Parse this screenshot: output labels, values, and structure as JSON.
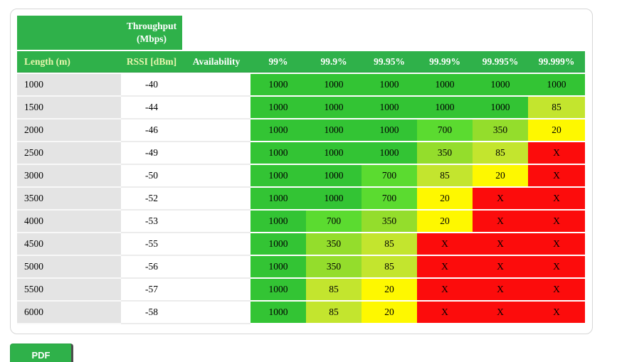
{
  "table": {
    "corner_header": "Throughput\n(Mbps)",
    "columns": [
      "Length (m)",
      "RSSI [dBm]",
      "Availability",
      "99%",
      "99.9%",
      "99.95%",
      "99.99%",
      "99.995%",
      "99.999%"
    ],
    "rows": [
      {
        "length": "1000",
        "rssi": "-40",
        "availability": "",
        "values": [
          "1000",
          "1000",
          "1000",
          "1000",
          "1000",
          "1000"
        ]
      },
      {
        "length": "1500",
        "rssi": "-44",
        "availability": "",
        "values": [
          "1000",
          "1000",
          "1000",
          "1000",
          "1000",
          "85"
        ]
      },
      {
        "length": "2000",
        "rssi": "-46",
        "availability": "",
        "values": [
          "1000",
          "1000",
          "1000",
          "700",
          "350",
          "20"
        ]
      },
      {
        "length": "2500",
        "rssi": "-49",
        "availability": "",
        "values": [
          "1000",
          "1000",
          "1000",
          "350",
          "85",
          "X"
        ]
      },
      {
        "length": "3000",
        "rssi": "-50",
        "availability": "",
        "values": [
          "1000",
          "1000",
          "700",
          "85",
          "20",
          "X"
        ]
      },
      {
        "length": "3500",
        "rssi": "-52",
        "availability": "",
        "values": [
          "1000",
          "1000",
          "700",
          "20",
          "X",
          "X"
        ]
      },
      {
        "length": "4000",
        "rssi": "-53",
        "availability": "",
        "values": [
          "1000",
          "700",
          "350",
          "20",
          "X",
          "X"
        ]
      },
      {
        "length": "4500",
        "rssi": "-55",
        "availability": "",
        "values": [
          "1000",
          "350",
          "85",
          "X",
          "X",
          "X"
        ]
      },
      {
        "length": "5000",
        "rssi": "-56",
        "availability": "",
        "values": [
          "1000",
          "350",
          "85",
          "X",
          "X",
          "X"
        ]
      },
      {
        "length": "5500",
        "rssi": "-57",
        "availability": "",
        "values": [
          "1000",
          "85",
          "20",
          "X",
          "X",
          "X"
        ]
      },
      {
        "length": "6000",
        "rssi": "-58",
        "availability": "",
        "values": [
          "1000",
          "85",
          "20",
          "X",
          "X",
          "X"
        ]
      }
    ]
  },
  "pdf_button": {
    "label": "PDF"
  },
  "colors": {
    "header_green": "#2fb14a",
    "header_text": "#ffffff",
    "header_label_tint": "#e9f6ae",
    "row_label_bg": "#e4e4e4",
    "panel_border": "#d6d6d6",
    "mid_separator": "#ececec",
    "pdf_shadow": "#4d4d4d",
    "cells": {
      "1000": "#33c434",
      "700": "#5bdb30",
      "350": "#94dd2c",
      "85": "#c3e52e",
      "20": "#fef800",
      "X": "#fc0c0c"
    }
  }
}
